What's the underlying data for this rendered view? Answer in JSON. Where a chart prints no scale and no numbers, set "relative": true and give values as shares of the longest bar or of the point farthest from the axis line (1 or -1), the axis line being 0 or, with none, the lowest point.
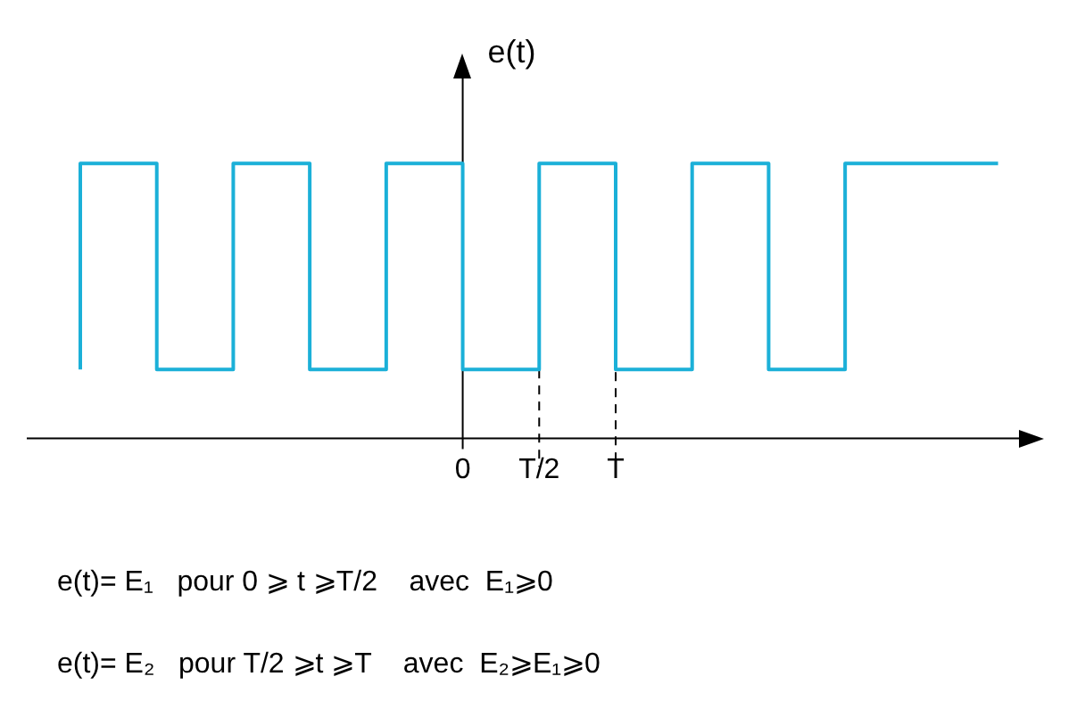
{
  "chart_data": {
    "type": "step",
    "relative": true,
    "ylabel": "e(t)",
    "categories": [
      null,
      null,
      null,
      null,
      null,
      "0",
      "T/2",
      "T",
      null,
      null,
      null,
      null,
      null
    ],
    "series": [
      {
        "color": "#1bb0d8",
        "values": [
          0.25,
          1,
          0.25,
          1,
          0.25,
          1,
          0.25,
          1,
          0.25,
          1,
          0.25,
          1,
          1
        ]
      }
    ],
    "ref_lines": [
      {
        "axis": "x",
        "value": "T/2",
        "color": "#000000",
        "line_style": "dashed"
      },
      {
        "axis": "x",
        "value": "T",
        "color": "#000000",
        "line_style": "dashed"
      }
    ],
    "annotations": [
      "e(t)= E₁   pour 0 ⩾ t ⩾T/2    avec  E₁⩾0",
      "e(t)= E₂   pour T/2 ⩾t ⩾T    avec  E₂⩾E₁⩾0"
    ],
    "legend": false,
    "marker": "none"
  }
}
